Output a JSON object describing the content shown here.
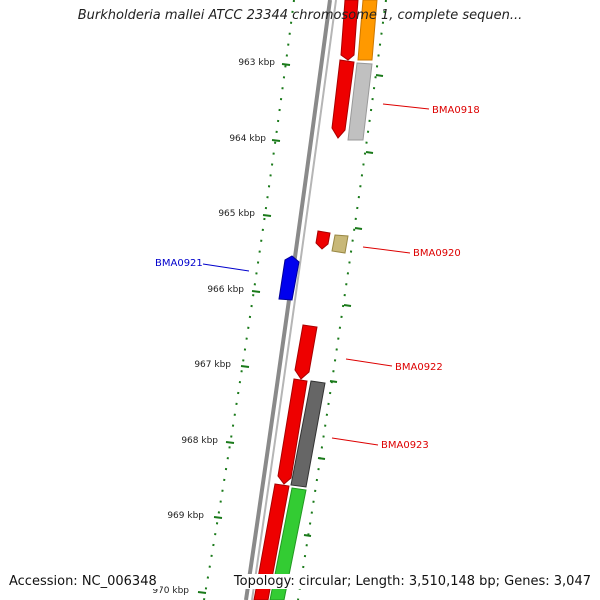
{
  "title": "Burkholderia mallei ATCC 23344 chromosome 1, complete sequen...",
  "footer": {
    "accession": "Accession: NC_006348",
    "summary": "Topology: circular; Length: 3,510,148 bp; Genes: 3,047"
  },
  "kbp_ticks": [
    "963 kbp",
    "964 kbp",
    "965 kbp",
    "966 kbp",
    "967 kbp",
    "968 kbp",
    "969 kbp",
    "970 kbp"
  ],
  "gene_labels": [
    {
      "text": "BMA0918",
      "color": "#dd0000"
    },
    {
      "text": "BMA0920",
      "color": "#dd0000"
    },
    {
      "text": "BMA0921",
      "color": "#0000cc"
    },
    {
      "text": "BMA0922",
      "color": "#dd0000"
    },
    {
      "text": "BMA0923",
      "color": "#dd0000"
    }
  ],
  "colors": {
    "backbone": "#8a8a8a",
    "tick": "#1a7a1a",
    "forward_cds": "#ee0000",
    "reverse_cds": "#ee0000",
    "blue_cds": "#0000ee",
    "orange_cds": "#ff9900",
    "light_gray_cds": "#bbbbbb",
    "dark_gray_cds": "#666666",
    "khaki_cds": "#c8b878",
    "green_cds": "#33cc33"
  }
}
